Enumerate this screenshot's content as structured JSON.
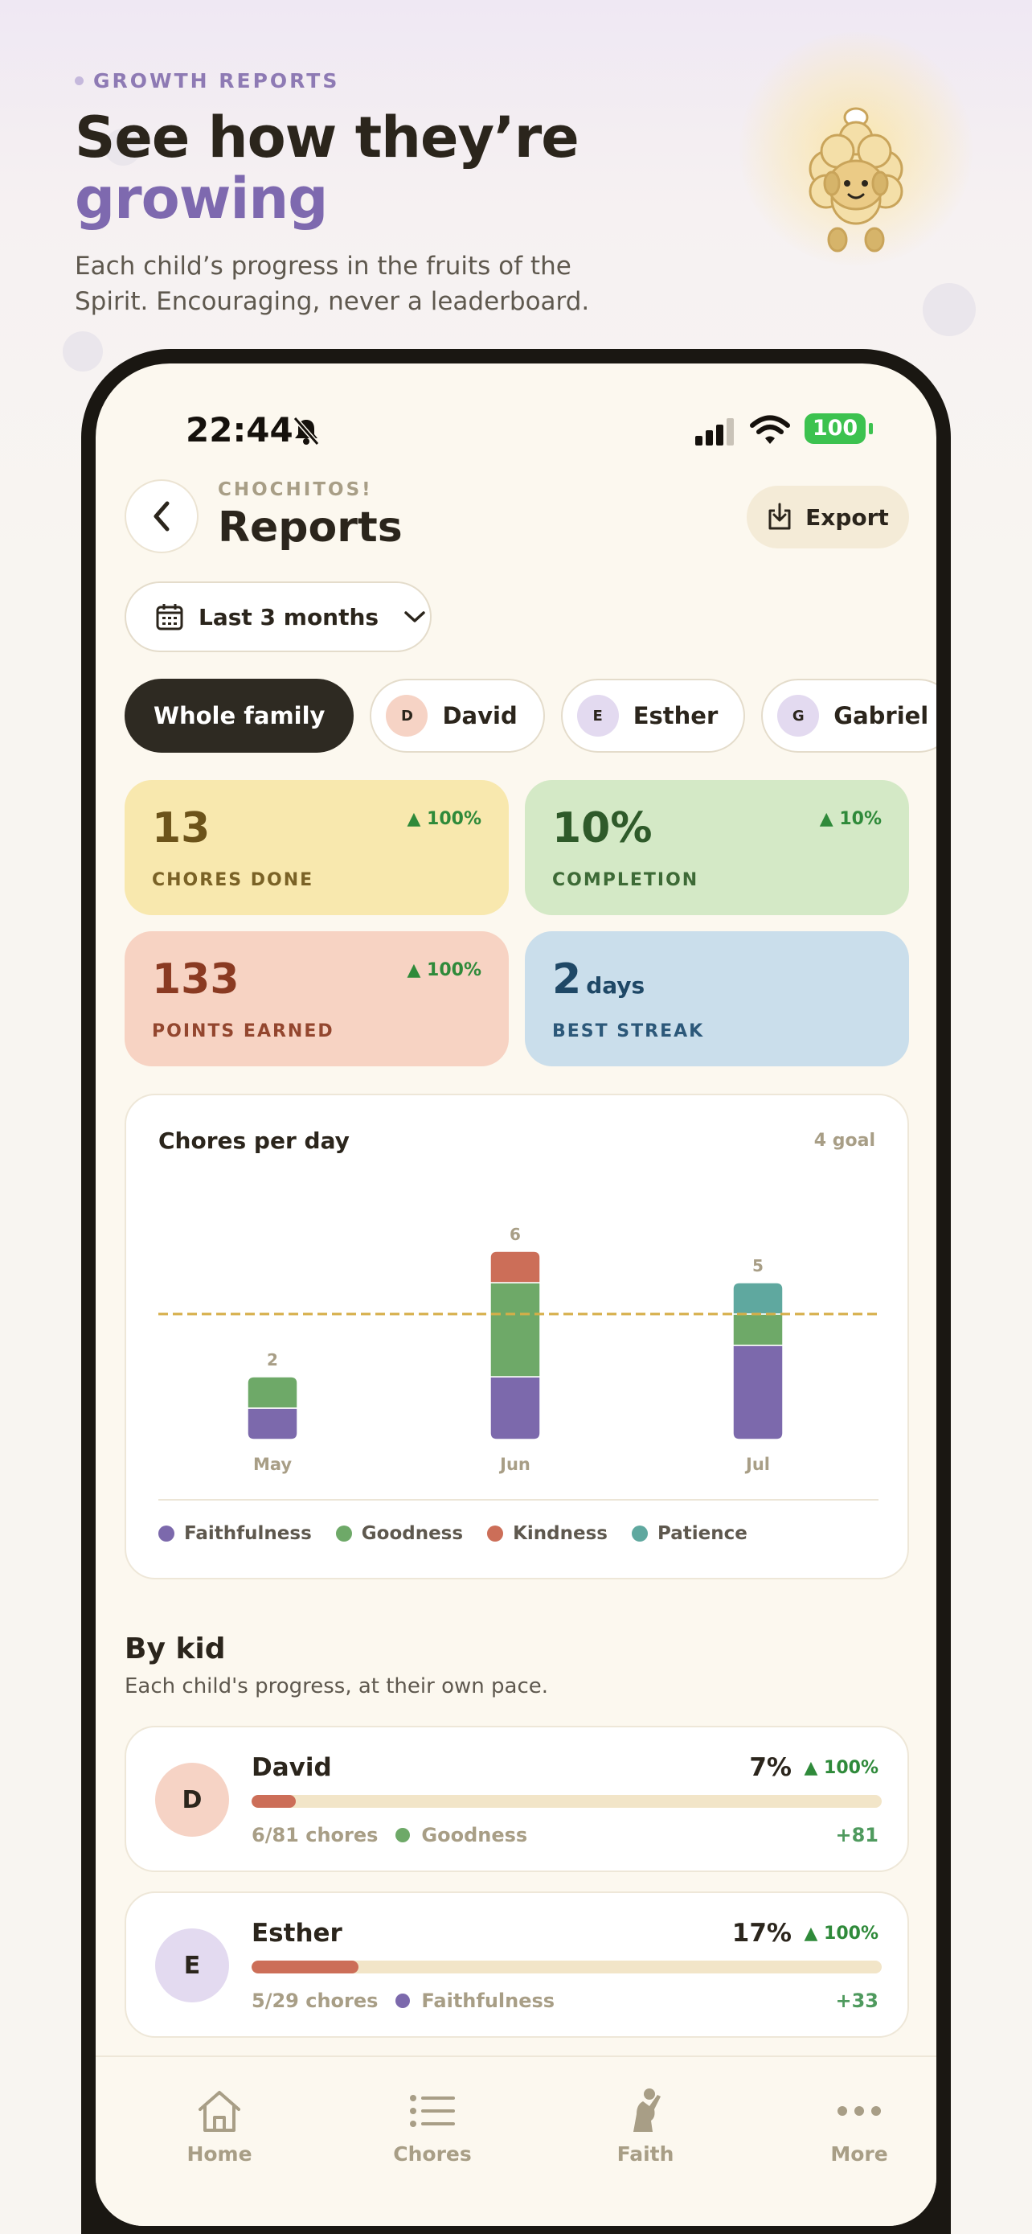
{
  "hero": {
    "eyebrow": "GROWTH REPORTS",
    "headline_line1": "See how they’re",
    "headline_line2": "growing",
    "subtitle": "Each child’s progress in the fruits of the Spirit. Encouraging, never a leaderboard."
  },
  "status_bar": {
    "time": "22:44",
    "battery": "100"
  },
  "header": {
    "app_name": "CHOCHITOS!",
    "title": "Reports",
    "export_label": "Export"
  },
  "range_select": {
    "value": "Last 3 months"
  },
  "filters": [
    {
      "label": "Whole family",
      "active": true
    },
    {
      "label": "David",
      "initial": "D",
      "color": "#F6D3C5"
    },
    {
      "label": "Esther",
      "initial": "E",
      "color": "#E3DAF0"
    },
    {
      "label": "Gabriel",
      "initial": "G",
      "color": "#E3DAF0"
    }
  ],
  "stats": {
    "chores": {
      "value": "13",
      "label": "CHORES DONE",
      "trend": "▲ 100%"
    },
    "completion": {
      "value": "10%",
      "label": "COMPLETION",
      "trend": "▲ 10%"
    },
    "points": {
      "value": "133",
      "label": "POINTS EARNED",
      "trend": "▲ 100%"
    },
    "streak": {
      "value": "2",
      "unit": "days",
      "label": "BEST STREAK"
    }
  },
  "chart": {
    "title": "Chores per day",
    "goal_label": "4 goal"
  },
  "chart_data": {
    "type": "bar",
    "stacked": true,
    "categories": [
      "May",
      "Jun",
      "Jul"
    ],
    "series": [
      {
        "name": "Faithfulness",
        "color": "#7C69AC",
        "values": [
          1,
          2,
          3
        ]
      },
      {
        "name": "Goodness",
        "color": "#6EA968",
        "values": [
          1,
          3,
          1
        ]
      },
      {
        "name": "Kindness",
        "color": "#CC6E58",
        "values": [
          0,
          1,
          0
        ]
      },
      {
        "name": "Patience",
        "color": "#5FA89F",
        "values": [
          0,
          0,
          1
        ]
      }
    ],
    "totals": [
      2,
      6,
      5
    ],
    "goal": 4,
    "ylim": [
      0,
      6
    ]
  },
  "by_kid": {
    "title": "By kid",
    "subtitle": "Each child's progress, at their own pace.",
    "kids": [
      {
        "initial": "D",
        "name": "David",
        "percent": "7%",
        "progress": 0.07,
        "trend": "▲ 100%",
        "chores": "6/81 chores",
        "fruit": "Goodness",
        "fruit_color": "#6EA968",
        "points": "+81",
        "avatar_color": "#F6D3C5"
      },
      {
        "initial": "E",
        "name": "Esther",
        "percent": "17%",
        "progress": 0.17,
        "trend": "▲ 100%",
        "chores": "5/29 chores",
        "fruit": "Faithfulness",
        "fruit_color": "#7C69AC",
        "points": "+33",
        "avatar_color": "#E3DAF0"
      }
    ]
  },
  "tabbar": {
    "home": "Home",
    "chores": "Chores",
    "faith": "Faith",
    "more": "More"
  }
}
